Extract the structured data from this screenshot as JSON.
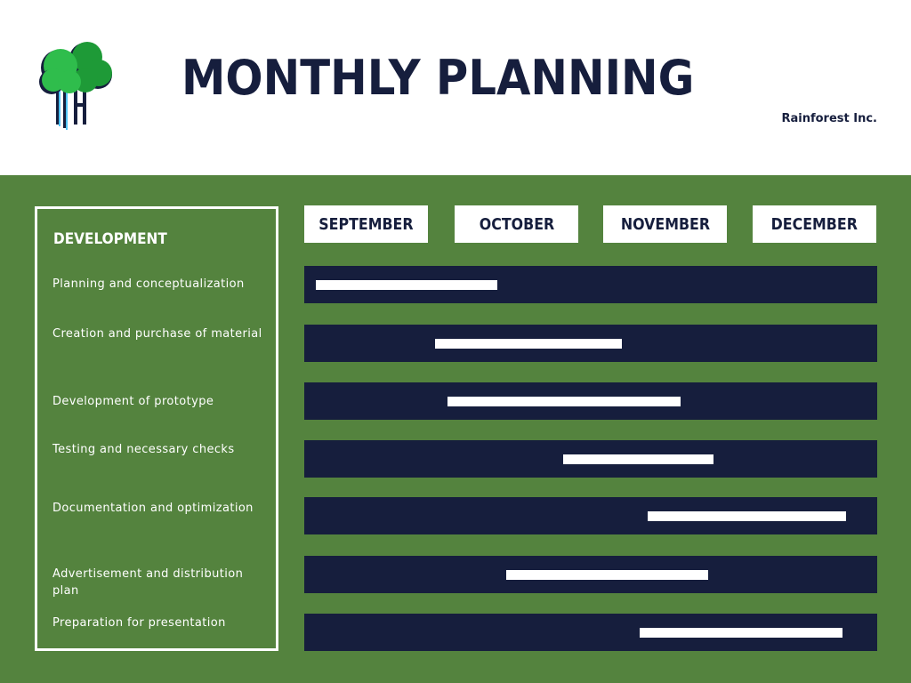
{
  "header": {
    "title": "MONTHLY PLANNING",
    "company": "Rainforest Inc."
  },
  "logo": {
    "icon": "tree-logo-icon"
  },
  "colors": {
    "navy": "#161e3d",
    "green": "#54833e",
    "white": "#ffffff",
    "logo_green": "#2fbd4c",
    "logo_dark_green": "#1e9a37"
  },
  "chart_data": {
    "type": "gantt",
    "title": "DEVELOPMENT",
    "columns": [
      "SEPTEMBER",
      "OCTOBER",
      "NOVEMBER",
      "DECEMBER"
    ],
    "tasks": [
      {
        "label": "Planning and conceptualization",
        "start": 0.08,
        "end": 1.35
      },
      {
        "label": "Creation and purchase of material",
        "start": 0.91,
        "end": 2.22
      },
      {
        "label": "Development of prototype",
        "start": 1.0,
        "end": 2.63
      },
      {
        "label": "Testing and necessary checks",
        "start": 1.81,
        "end": 2.86
      },
      {
        "label": "Documentation and optimization",
        "start": 2.4,
        "end": 3.78
      },
      {
        "label": "Advertisement and distribution plan",
        "start": 1.41,
        "end": 2.82
      },
      {
        "label": "Preparation for presentation",
        "start": 2.34,
        "end": 3.76
      }
    ]
  }
}
